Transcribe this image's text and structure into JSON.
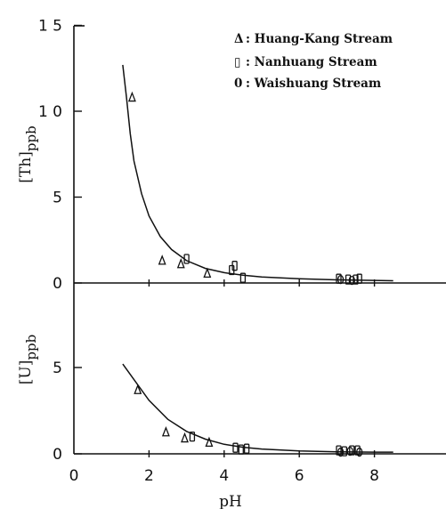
{
  "chart_data": {
    "type": "scatter",
    "xlabel": "pH",
    "x_ticks": [
      "0",
      "2",
      "4",
      "6",
      "8"
    ],
    "xlim": [
      0,
      10
    ],
    "legend": {
      "placement": "top-right",
      "entries": [
        {
          "symbol": "Δ",
          "label": ": Huang-Kang Stream",
          "marker": "triangle"
        },
        {
          "symbol": "▯",
          "label": ": Nanhuang Stream",
          "marker": "rectangle"
        },
        {
          "symbol": "0",
          "label": ": Waishuang Stream",
          "marker": "circle"
        }
      ]
    },
    "panels": [
      {
        "id": "th",
        "ylabel_main": "[Th]",
        "ylabel_sub": "ppb",
        "ylim": [
          0,
          15
        ],
        "y_ticks": [
          {
            "value": 0,
            "label": "0"
          },
          {
            "value": 5,
            "label": "5"
          },
          {
            "value": 10,
            "label": "1 0"
          },
          {
            "value": 15,
            "label": "1 5"
          }
        ],
        "fit_curve": [
          [
            1.3,
            12.7
          ],
          [
            1.4,
            10.8
          ],
          [
            1.5,
            8.7
          ],
          [
            1.6,
            7.1
          ],
          [
            1.8,
            5.2
          ],
          [
            2.0,
            3.9
          ],
          [
            2.3,
            2.7
          ],
          [
            2.6,
            1.95
          ],
          [
            3.0,
            1.3
          ],
          [
            3.5,
            0.85
          ],
          [
            4.0,
            0.6
          ],
          [
            4.5,
            0.45
          ],
          [
            5.0,
            0.35
          ],
          [
            6.0,
            0.25
          ],
          [
            7.0,
            0.18
          ],
          [
            8.0,
            0.15
          ],
          [
            8.5,
            0.13
          ]
        ],
        "series": [
          {
            "marker": "triangle",
            "points": [
              [
                1.55,
                10.8
              ],
              [
                2.35,
                1.3
              ],
              [
                2.85,
                1.1
              ],
              [
                3.55,
                0.55
              ]
            ]
          },
          {
            "marker": "rectangle",
            "points": [
              [
                3.0,
                1.4
              ],
              [
                4.2,
                0.75
              ],
              [
                4.28,
                1.0
              ],
              [
                4.5,
                0.3
              ],
              [
                7.05,
                0.25
              ],
              [
                7.3,
                0.2
              ],
              [
                7.5,
                0.2
              ],
              [
                7.6,
                0.25
              ]
            ]
          },
          {
            "marker": "circle",
            "points": [
              [
                7.1,
                0.2
              ],
              [
                7.4,
                0.15
              ]
            ]
          }
        ]
      },
      {
        "id": "u",
        "ylabel_main": "[U]",
        "ylabel_sub": "ppb",
        "ylim": [
          0,
          7.5
        ],
        "y_ticks": [
          {
            "value": 0,
            "label": "0"
          },
          {
            "value": 5,
            "label": "5"
          }
        ],
        "fit_curve": [
          [
            1.3,
            5.2
          ],
          [
            1.6,
            4.3
          ],
          [
            2.0,
            3.1
          ],
          [
            2.5,
            2.0
          ],
          [
            3.0,
            1.3
          ],
          [
            3.5,
            0.85
          ],
          [
            4.0,
            0.55
          ],
          [
            4.5,
            0.38
          ],
          [
            5.0,
            0.28
          ],
          [
            6.0,
            0.17
          ],
          [
            7.0,
            0.12
          ],
          [
            8.0,
            0.1
          ],
          [
            8.5,
            0.1
          ]
        ],
        "series": [
          {
            "marker": "triangle",
            "points": [
              [
                1.7,
                3.7
              ],
              [
                2.45,
                1.25
              ],
              [
                2.95,
                0.9
              ],
              [
                3.6,
                0.65
              ]
            ]
          },
          {
            "marker": "rectangle",
            "points": [
              [
                3.15,
                1.0
              ],
              [
                4.3,
                0.35
              ],
              [
                4.45,
                0.25
              ],
              [
                4.6,
                0.3
              ],
              [
                7.05,
                0.2
              ],
              [
                7.2,
                0.15
              ],
              [
                7.4,
                0.2
              ],
              [
                7.55,
                0.2
              ]
            ]
          },
          {
            "marker": "circle",
            "points": [
              [
                7.1,
                0.1
              ],
              [
                7.35,
                0.15
              ],
              [
                7.6,
                0.1
              ]
            ]
          }
        ]
      }
    ]
  }
}
